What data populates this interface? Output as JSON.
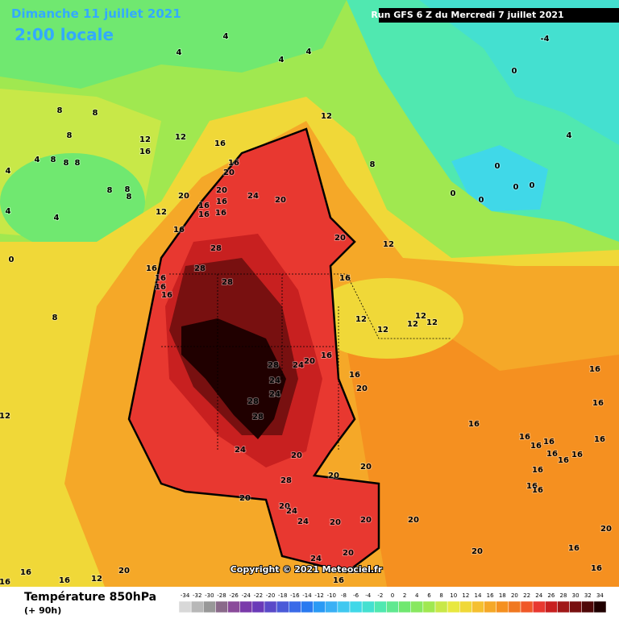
{
  "header": {
    "date": "Dimanche 11 juillet 2021",
    "time": "2:00 locale",
    "run": "Run GFS 6 Z du Mercredi 7 juillet 2021"
  },
  "footer": {
    "title": "Température 850hPa",
    "subtitle": "(+ 90h)",
    "copyright": "Copyright © 2021 Meteociel.fr"
  },
  "legend": {
    "values": [
      -34,
      -32,
      -30,
      -28,
      -26,
      -24,
      -22,
      -20,
      -18,
      -16,
      -14,
      -12,
      -10,
      -8,
      -6,
      -4,
      -2,
      0,
      2,
      4,
      6,
      8,
      10,
      12,
      14,
      16,
      18,
      20,
      22,
      24,
      26,
      28,
      30,
      32,
      34
    ],
    "colors": [
      "#d8d8d8",
      "#b8b8b8",
      "#989898",
      "#8a6a8a",
      "#8a4a9a",
      "#7a3aaa",
      "#6a3ab8",
      "#5a4ac8",
      "#4a5ad8",
      "#3a6ae8",
      "#2a7af0",
      "#2a9af5",
      "#3ab0f5",
      "#40c8f0",
      "#40d8e8",
      "#44e0d0",
      "#50e8b0",
      "#60e890",
      "#70e870",
      "#88e860",
      "#a0e850",
      "#c8e848",
      "#e8e840",
      "#f0d838",
      "#f5c030",
      "#f5a828",
      "#f59020",
      "#f07820",
      "#f05828",
      "#e83830",
      "#c82020",
      "#a01818",
      "#781010",
      "#500808",
      "#200000"
    ]
  },
  "contour_labels": [
    4,
    4,
    4,
    4,
    -4,
    0,
    4,
    0,
    0,
    0,
    0,
    0,
    8,
    12,
    12,
    16,
    12,
    16,
    16,
    20,
    20,
    16,
    16,
    16,
    16,
    20,
    12,
    16,
    24,
    20,
    28,
    28,
    28,
    20,
    12,
    16,
    16,
    16,
    16,
    16,
    12,
    12,
    12,
    12,
    12,
    16,
    28,
    24,
    20,
    16,
    24,
    20,
    24,
    28,
    28,
    24,
    20,
    20,
    20,
    28,
    20,
    20,
    24,
    24,
    20,
    20,
    20,
    20,
    24,
    20,
    16,
    16,
    16,
    16,
    16,
    16,
    16,
    16,
    16,
    16,
    16,
    16,
    16,
    16,
    16,
    8,
    8,
    8,
    4,
    8,
    8,
    8,
    4,
    8,
    8,
    8,
    4,
    4,
    0,
    8,
    12,
    16,
    12,
    20,
    16,
    16,
    20,
    20,
    16
  ]
}
